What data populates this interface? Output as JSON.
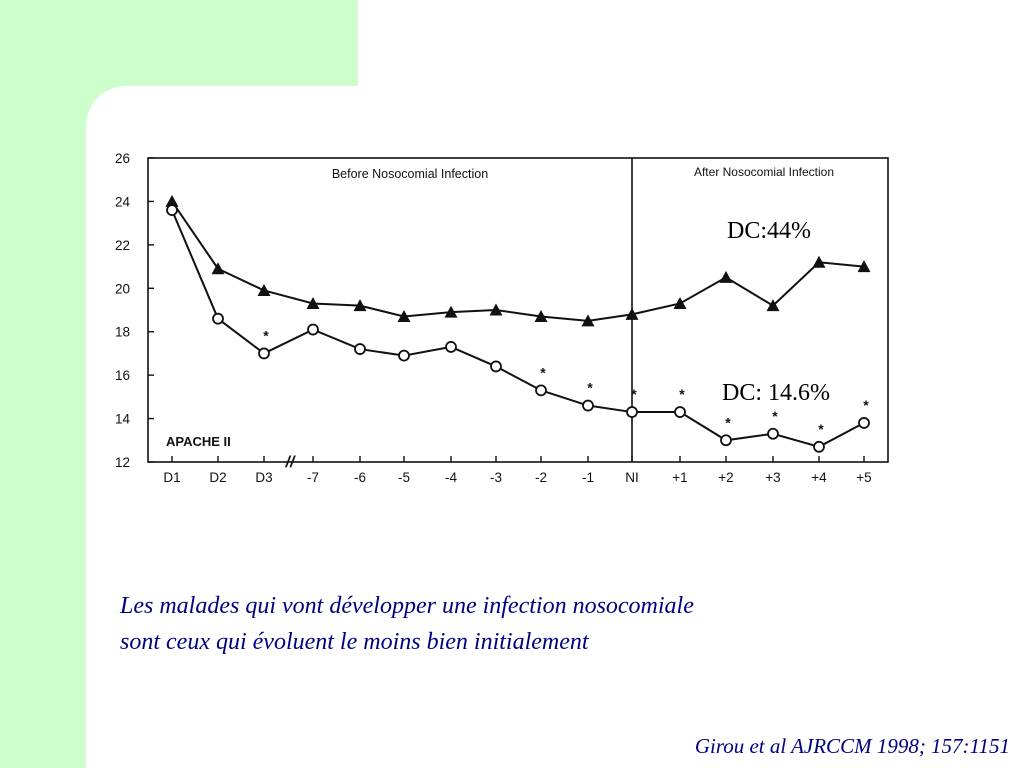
{
  "chart_data": {
    "type": "line",
    "panels": [
      "Before Nosocomial Infection",
      "After Nosocomial Infection"
    ],
    "categories": [
      "D1",
      "D2",
      "D3",
      "-7",
      "-6",
      "-5",
      "-4",
      "-3",
      "-2",
      "-1",
      "NI",
      "+1",
      "+2",
      "+3",
      "+4",
      "+5"
    ],
    "axis_break_label": "//",
    "ylabel": "APACHE II",
    "ylim": [
      12,
      26
    ],
    "yticks": [
      "12",
      "14",
      "16",
      "18",
      "20",
      "22",
      "24",
      "26"
    ],
    "series": [
      {
        "marker": "filled-triangle",
        "values": [
          24.0,
          20.9,
          19.9,
          19.3,
          19.2,
          18.7,
          18.9,
          19.0,
          18.7,
          18.5,
          18.8,
          19.3,
          20.5,
          19.2,
          21.2,
          21.0
        ],
        "annotation": "DC:44%"
      },
      {
        "marker": "open-circle",
        "values": [
          23.6,
          18.6,
          17.0,
          18.1,
          17.2,
          16.9,
          17.3,
          16.4,
          15.3,
          14.6,
          14.3,
          14.3,
          13.0,
          13.3,
          12.7,
          13.8
        ],
        "annotation": "DC: 14.6%"
      }
    ],
    "significance_marker": "*",
    "significant_points": [
      2,
      8,
      9,
      10,
      11,
      12,
      13,
      14,
      15
    ],
    "grid": false
  },
  "caption": {
    "line1": "Les malades qui vont développer une infection nosocomiale",
    "line2": "sont ceux qui évoluent le moins bien initialement"
  },
  "citation": "Girou et al  AJRCCM 1998; 157:1151",
  "colors": {
    "background": "#ccffcc",
    "panel": "#ffffff",
    "caption_text": "#000080",
    "chart_ink": "#111111"
  }
}
